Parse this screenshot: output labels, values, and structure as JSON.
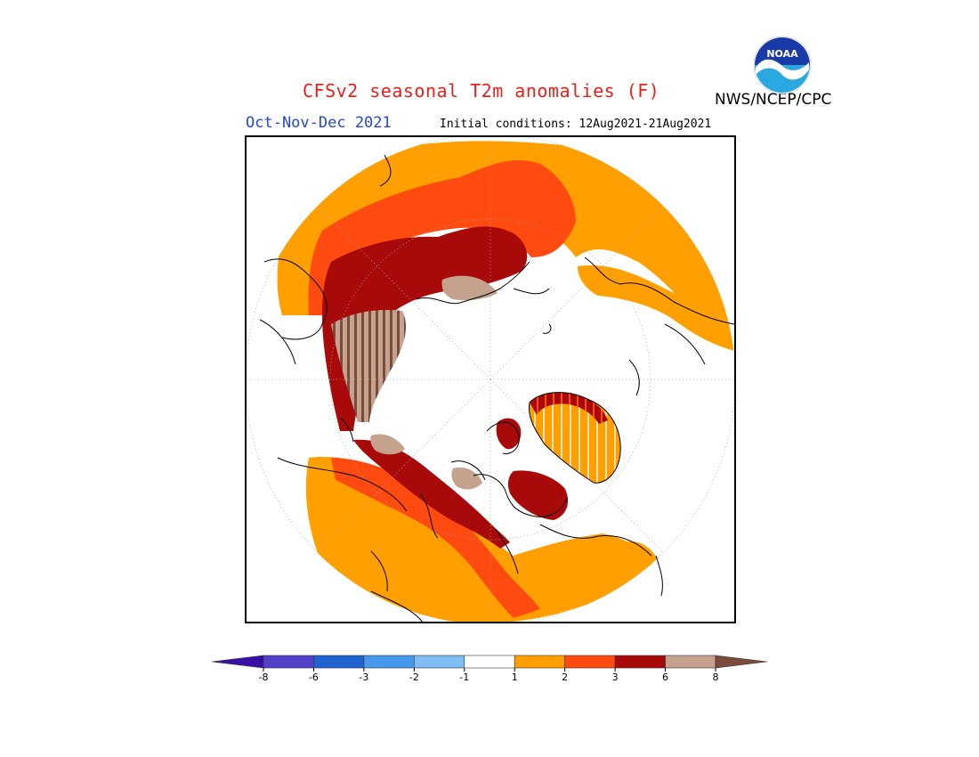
{
  "header": {
    "title": "CFSv2 seasonal T2m anomalies (F)",
    "season": "Oct-Nov-Dec 2021",
    "initial_conditions": "Initial conditions: 12Aug2021-21Aug2021",
    "agency": "NWS/NCEP/CPC",
    "logo_text": "NOAA"
  },
  "legend": {
    "tick_labels": [
      "-8",
      "-6",
      "-3",
      "-2",
      "-1",
      "1",
      "2",
      "3",
      "6",
      "8"
    ],
    "bins": [
      {
        "range": "< -8",
        "color": "#3a0fa8"
      },
      {
        "range": "-8 to -6",
        "color": "#5140c8"
      },
      {
        "range": "-6 to -3",
        "color": "#1f64d0"
      },
      {
        "range": "-3 to -2",
        "color": "#4797ee"
      },
      {
        "range": "-2 to -1",
        "color": "#7fbcf4"
      },
      {
        "range": "-1 to 1",
        "color": "#ffffff"
      },
      {
        "range": "1 to 2",
        "color": "#ffa000"
      },
      {
        "range": "2 to 3",
        "color": "#ff4a10"
      },
      {
        "range": "3 to 6",
        "color": "#a80a0a"
      },
      {
        "range": "6 to 8",
        "color": "#c4a28e"
      },
      {
        "range": "> 8",
        "color": "#7a4a3a"
      }
    ]
  },
  "map": {
    "projection": "north polar stereographic",
    "colors": {
      "near_normal": "#ffffff",
      "anom_1_2": "#ffa000",
      "anom_2_3": "#ff4a10",
      "anom_3_6": "#a80a0a",
      "anom_6_8": "#c4a28e",
      "anom_gt_8": "#7a4a3a",
      "coastline": "#000000",
      "graticule": "#999999"
    }
  }
}
